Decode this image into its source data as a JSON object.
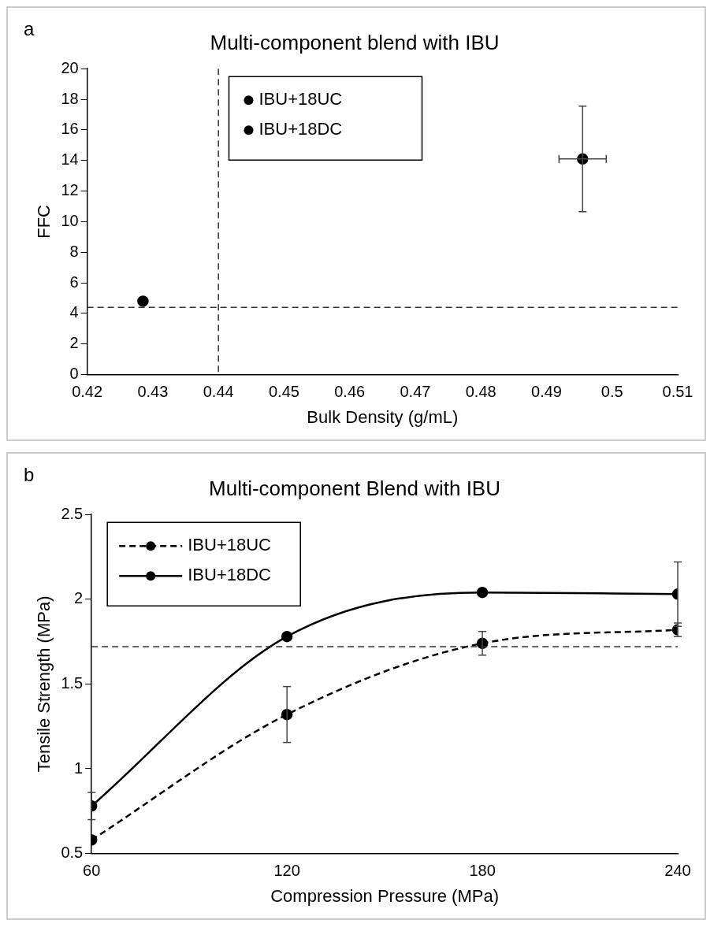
{
  "chart_data": [
    {
      "type": "scatter",
      "title": "Multi-component blend with IBU",
      "xlabel": "Bulk Density (g/mL)",
      "ylabel": "FFC",
      "annotations": [
        "a"
      ],
      "xlim": [
        0.42,
        0.51
      ],
      "xticks": [
        0.42,
        0.43,
        0.44,
        0.45,
        0.46,
        0.47,
        0.48,
        0.49,
        0.5,
        0.51
      ],
      "ylim": [
        0,
        20
      ],
      "yticks": [
        0,
        2,
        4,
        6,
        8,
        10,
        12,
        14,
        16,
        18,
        20
      ],
      "grid": false,
      "legend": "top left",
      "marker": "circle",
      "ref_lines": [
        {
          "axis": "x",
          "value": 0.44,
          "line_style": "dashed"
        },
        {
          "axis": "y",
          "value": 4.4,
          "line_style": "dashed"
        }
      ],
      "series": [
        {
          "name": "IBU+18UC",
          "color": "#000000",
          "x": [
            0.4285
          ],
          "values": [
            4.8
          ]
        },
        {
          "name": "IBU+18DC",
          "color": "#000000",
          "x": [
            0.4955
          ],
          "values": [
            14.1
          ],
          "errors": [
            3.45
          ],
          "xerrors": [
            0.0036
          ]
        }
      ]
    },
    {
      "type": "line",
      "title": "Multi-component Blend with IBU",
      "xlabel": "Compression Pressure (MPa)",
      "ylabel": "Tensile Strength (MPa)",
      "annotations": [
        "b"
      ],
      "xlim": [
        60,
        240
      ],
      "xticks": [
        60,
        120,
        180,
        240
      ],
      "ylim": [
        0.5,
        2.5
      ],
      "yticks": [
        0.5,
        1,
        1.5,
        2,
        2.5
      ],
      "grid": false,
      "legend": "top left",
      "marker": "circle",
      "x": [
        60,
        120,
        180,
        240
      ],
      "ref_lines": [
        {
          "axis": "y",
          "value": 1.72,
          "line_style": "dashed"
        }
      ],
      "series": [
        {
          "name": "IBU+18UC",
          "color": "#000000",
          "line_style": "dashed",
          "values": [
            0.58,
            1.32,
            1.74,
            1.82
          ],
          "errors": [
            null,
            0.165,
            0.07,
            0.04
          ]
        },
        {
          "name": "IBU+18DC",
          "color": "#000000",
          "line_style": "solid",
          "values": [
            0.78,
            1.78,
            2.04,
            2.03
          ],
          "errors": [
            0.08,
            null,
            null,
            0.19
          ]
        }
      ]
    }
  ]
}
